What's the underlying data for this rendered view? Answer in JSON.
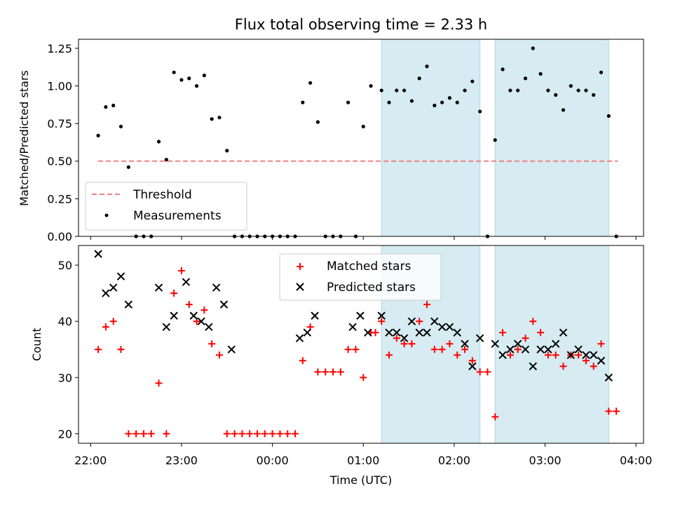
{
  "title": "Flux total observing time = 2.33 h",
  "colors": {
    "threshold": "#f08080",
    "measurements": "#000000",
    "matched": "#ff0000",
    "predicted": "#000000",
    "span_fill": "#add8e6"
  },
  "chart_data": [
    {
      "type": "scatter",
      "ylabel": "Matched/Predicted stars",
      "ylim": [
        0,
        1.31
      ],
      "yticks": [
        0.0,
        0.25,
        0.5,
        0.75,
        1.0,
        1.25
      ],
      "ytick_labels": [
        "0.00",
        "0.25",
        "0.50",
        "0.75",
        "1.00",
        "1.25"
      ],
      "xlim": [
        "21:52",
        "04:05"
      ],
      "xticks": [
        "22:00",
        "23:00",
        "00:00",
        "01:00",
        "02:00",
        "03:00",
        "04:00"
      ],
      "legend": {
        "placement": "lower-left",
        "entries": [
          {
            "label": "Threshold",
            "marker": "dashed-line"
          },
          {
            "label": "Measurements",
            "marker": "dot"
          }
        ]
      },
      "threshold": {
        "value": 0.5,
        "x_start": "22:05",
        "x_end": "03:48"
      },
      "spans": [
        [
          "01:12",
          "02:17"
        ],
        [
          "02:27",
          "03:42"
        ]
      ],
      "series": [
        {
          "name": "Measurements",
          "points": [
            [
              "22:05",
              0.67
            ],
            [
              "22:10",
              0.86
            ],
            [
              "22:15",
              0.87
            ],
            [
              "22:20",
              0.73
            ],
            [
              "22:25",
              0.46
            ],
            [
              "22:30",
              0.0
            ],
            [
              "22:35",
              0.0
            ],
            [
              "22:40",
              0.0
            ],
            [
              "22:45",
              0.63
            ],
            [
              "22:50",
              0.51
            ],
            [
              "22:55",
              1.09
            ],
            [
              "23:00",
              1.04
            ],
            [
              "23:05",
              1.05
            ],
            [
              "23:10",
              1.0
            ],
            [
              "23:15",
              1.07
            ],
            [
              "23:20",
              0.78
            ],
            [
              "23:25",
              0.79
            ],
            [
              "23:30",
              0.57
            ],
            [
              "23:35",
              0.0
            ],
            [
              "23:40",
              0.0
            ],
            [
              "23:45",
              0.0
            ],
            [
              "23:50",
              0.0
            ],
            [
              "23:55",
              0.0
            ],
            [
              "00:00",
              0.0
            ],
            [
              "00:05",
              0.0
            ],
            [
              "00:10",
              0.0
            ],
            [
              "00:15",
              0.0
            ],
            [
              "00:20",
              0.89
            ],
            [
              "00:25",
              1.02
            ],
            [
              "00:30",
              0.76
            ],
            [
              "00:35",
              0.0
            ],
            [
              "00:40",
              0.0
            ],
            [
              "00:45",
              0.0
            ],
            [
              "00:50",
              0.89
            ],
            [
              "00:55",
              0.0
            ],
            [
              "01:00",
              0.73
            ],
            [
              "01:05",
              1.0
            ],
            [
              "01:12",
              0.97
            ],
            [
              "01:17",
              0.89
            ],
            [
              "01:22",
              0.97
            ],
            [
              "01:27",
              0.97
            ],
            [
              "01:32",
              0.9
            ],
            [
              "01:37",
              1.05
            ],
            [
              "01:42",
              1.13
            ],
            [
              "01:47",
              0.87
            ],
            [
              "01:52",
              0.89
            ],
            [
              "01:57",
              0.92
            ],
            [
              "02:02",
              0.89
            ],
            [
              "02:07",
              0.97
            ],
            [
              "02:12",
              1.03
            ],
            [
              "02:17",
              0.83
            ],
            [
              "02:22",
              0.0
            ],
            [
              "02:27",
              0.64
            ],
            [
              "02:32",
              1.11
            ],
            [
              "02:37",
              0.97
            ],
            [
              "02:42",
              0.97
            ],
            [
              "02:47",
              1.05
            ],
            [
              "02:52",
              1.25
            ],
            [
              "02:57",
              1.08
            ],
            [
              "03:02",
              0.97
            ],
            [
              "03:07",
              0.94
            ],
            [
              "03:12",
              0.84
            ],
            [
              "03:17",
              1.0
            ],
            [
              "03:22",
              0.97
            ],
            [
              "03:27",
              0.97
            ],
            [
              "03:32",
              0.94
            ],
            [
              "03:37",
              1.09
            ],
            [
              "03:42",
              0.8
            ],
            [
              "03:47",
              0.0
            ]
          ]
        }
      ]
    },
    {
      "type": "scatter",
      "xlabel": "Time (UTC)",
      "ylabel": "Count",
      "ylim": [
        18.3,
        53.5
      ],
      "yticks": [
        20,
        30,
        40,
        50
      ],
      "xlim": [
        "21:52",
        "04:05"
      ],
      "xticks": [
        "22:00",
        "23:00",
        "00:00",
        "01:00",
        "02:00",
        "03:00",
        "04:00"
      ],
      "legend": {
        "placement": "upper-center",
        "entries": [
          {
            "label": "Matched stars",
            "marker": "plus"
          },
          {
            "label": "Predicted stars",
            "marker": "x"
          }
        ]
      },
      "spans": [
        [
          "01:12",
          "02:17"
        ],
        [
          "02:27",
          "03:42"
        ]
      ],
      "series": [
        {
          "name": "Matched stars",
          "points": [
            [
              "22:05",
              35
            ],
            [
              "22:10",
              39
            ],
            [
              "22:15",
              40
            ],
            [
              "22:20",
              35
            ],
            [
              "22:25",
              20
            ],
            [
              "22:30",
              20
            ],
            [
              "22:35",
              20
            ],
            [
              "22:40",
              20
            ],
            [
              "22:45",
              29
            ],
            [
              "22:50",
              20
            ],
            [
              "22:55",
              45
            ],
            [
              "23:00",
              49
            ],
            [
              "23:05",
              43
            ],
            [
              "23:10",
              40
            ],
            [
              "23:15",
              42
            ],
            [
              "23:20",
              36
            ],
            [
              "23:25",
              34
            ],
            [
              "23:30",
              20
            ],
            [
              "23:35",
              20
            ],
            [
              "23:40",
              20
            ],
            [
              "23:45",
              20
            ],
            [
              "23:50",
              20
            ],
            [
              "23:55",
              20
            ],
            [
              "00:00",
              20
            ],
            [
              "00:05",
              20
            ],
            [
              "00:10",
              20
            ],
            [
              "00:15",
              20
            ],
            [
              "00:20",
              33
            ],
            [
              "00:25",
              39
            ],
            [
              "00:30",
              31
            ],
            [
              "00:35",
              31
            ],
            [
              "00:40",
              31
            ],
            [
              "00:45",
              31
            ],
            [
              "00:50",
              35
            ],
            [
              "00:55",
              35
            ],
            [
              "01:00",
              30
            ],
            [
              "01:05",
              38
            ],
            [
              "01:08",
              38
            ],
            [
              "01:12",
              40
            ],
            [
              "01:17",
              34
            ],
            [
              "01:22",
              37
            ],
            [
              "01:27",
              36
            ],
            [
              "01:32",
              36
            ],
            [
              "01:37",
              40
            ],
            [
              "01:42",
              43
            ],
            [
              "01:47",
              35
            ],
            [
              "01:52",
              35
            ],
            [
              "01:57",
              36
            ],
            [
              "02:02",
              34
            ],
            [
              "02:07",
              35
            ],
            [
              "02:12",
              33
            ],
            [
              "02:17",
              31
            ],
            [
              "02:22",
              31
            ],
            [
              "02:27",
              23
            ],
            [
              "02:32",
              38
            ],
            [
              "02:37",
              34
            ],
            [
              "02:42",
              35
            ],
            [
              "02:47",
              37
            ],
            [
              "02:52",
              40
            ],
            [
              "02:57",
              38
            ],
            [
              "03:02",
              34
            ],
            [
              "03:07",
              34
            ],
            [
              "03:12",
              32
            ],
            [
              "03:17",
              34
            ],
            [
              "03:22",
              34
            ],
            [
              "03:27",
              33
            ],
            [
              "03:32",
              32
            ],
            [
              "03:37",
              36
            ],
            [
              "03:42",
              24
            ],
            [
              "03:47",
              24
            ]
          ]
        },
        {
          "name": "Predicted stars",
          "points": [
            [
              "22:05",
              52
            ],
            [
              "22:10",
              45
            ],
            [
              "22:15",
              46
            ],
            [
              "22:20",
              48
            ],
            [
              "22:25",
              43
            ],
            [
              "22:45",
              46
            ],
            [
              "22:50",
              39
            ],
            [
              "22:55",
              41
            ],
            [
              "23:03",
              47
            ],
            [
              "23:08",
              41
            ],
            [
              "23:13",
              40
            ],
            [
              "23:18",
              39
            ],
            [
              "23:23",
              46
            ],
            [
              "23:28",
              43
            ],
            [
              "23:33",
              35
            ],
            [
              "00:18",
              37
            ],
            [
              "00:23",
              38
            ],
            [
              "00:28",
              41
            ],
            [
              "00:53",
              39
            ],
            [
              "00:58",
              41
            ],
            [
              "01:03",
              38
            ],
            [
              "01:12",
              41
            ],
            [
              "01:17",
              38
            ],
            [
              "01:22",
              38
            ],
            [
              "01:27",
              37
            ],
            [
              "01:32",
              40
            ],
            [
              "01:37",
              38
            ],
            [
              "01:42",
              38
            ],
            [
              "01:47",
              40
            ],
            [
              "01:52",
              39
            ],
            [
              "01:57",
              39
            ],
            [
              "02:02",
              38
            ],
            [
              "02:07",
              36
            ],
            [
              "02:12",
              32
            ],
            [
              "02:17",
              37
            ],
            [
              "02:27",
              36
            ],
            [
              "02:32",
              34
            ],
            [
              "02:37",
              35
            ],
            [
              "02:42",
              36
            ],
            [
              "02:47",
              35
            ],
            [
              "02:52",
              32
            ],
            [
              "02:57",
              35
            ],
            [
              "03:02",
              35
            ],
            [
              "03:07",
              36
            ],
            [
              "03:12",
              38
            ],
            [
              "03:17",
              34
            ],
            [
              "03:22",
              35
            ],
            [
              "03:27",
              34
            ],
            [
              "03:32",
              34
            ],
            [
              "03:37",
              33
            ],
            [
              "03:42",
              30
            ]
          ]
        }
      ]
    }
  ]
}
